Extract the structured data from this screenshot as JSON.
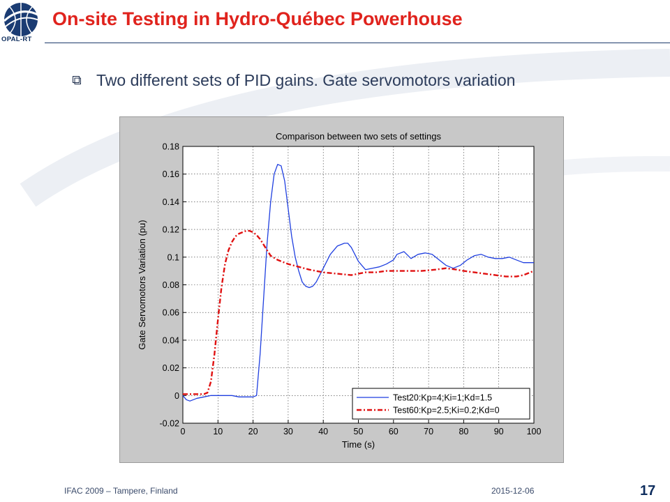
{
  "slide": {
    "logo_text": "OPAL-RT",
    "title": "On-site Testing in Hydro-Québec Powerhouse",
    "bullet": "Two  different sets of PID gains. Gate servomotors variation",
    "footer_left": "IFAC 2009 – Tampere, Finland",
    "footer_date": "2015-12-06",
    "page_number": "17"
  },
  "colors": {
    "title": "#e0231d",
    "navy": "#0f2e5e",
    "series_blue": "#1f3fe0",
    "series_red": "#e01010",
    "figure_bg": "#c8c8c8"
  },
  "chart_data": {
    "type": "line",
    "title": "Comparison between two sets of settings",
    "xlabel": "Time (s)",
    "ylabel": "Gate Servomotors Variation (pu)",
    "xlim": [
      0,
      100
    ],
    "ylim": [
      -0.02,
      0.18
    ],
    "xticks": [
      0,
      10,
      20,
      30,
      40,
      50,
      60,
      70,
      80,
      90,
      100
    ],
    "yticks": [
      -0.02,
      0,
      0.02,
      0.04,
      0.06,
      0.08,
      0.1,
      0.12,
      0.14,
      0.16,
      0.18
    ],
    "grid": true,
    "legend_position": "bottom-right",
    "series": [
      {
        "name": "Test20:Kp=4;Ki=1;Kd=1.5",
        "color": "#1f3fe0",
        "style": "solid",
        "points": [
          [
            0,
            0
          ],
          [
            1,
            -0.003
          ],
          [
            2,
            -0.004
          ],
          [
            4,
            -0.002
          ],
          [
            6,
            -0.001
          ],
          [
            8,
            0
          ],
          [
            10,
            0
          ],
          [
            12,
            0
          ],
          [
            14,
            0
          ],
          [
            16,
            -0.001
          ],
          [
            18,
            -0.001
          ],
          [
            20,
            -0.001
          ],
          [
            21,
            0
          ],
          [
            22,
            0.03
          ],
          [
            23,
            0.07
          ],
          [
            24,
            0.11
          ],
          [
            25,
            0.14
          ],
          [
            26,
            0.16
          ],
          [
            27,
            0.167
          ],
          [
            28,
            0.166
          ],
          [
            29,
            0.155
          ],
          [
            30,
            0.135
          ],
          [
            31,
            0.115
          ],
          [
            32,
            0.1
          ],
          [
            33,
            0.09
          ],
          [
            34,
            0.082
          ],
          [
            35,
            0.079
          ],
          [
            36,
            0.078
          ],
          [
            37,
            0.079
          ],
          [
            38,
            0.082
          ],
          [
            40,
            0.092
          ],
          [
            42,
            0.102
          ],
          [
            44,
            0.108
          ],
          [
            46,
            0.11
          ],
          [
            47,
            0.11
          ],
          [
            48,
            0.107
          ],
          [
            50,
            0.097
          ],
          [
            52,
            0.091
          ],
          [
            54,
            0.092
          ],
          [
            56,
            0.093
          ],
          [
            58,
            0.095
          ],
          [
            60,
            0.098
          ],
          [
            61,
            0.102
          ],
          [
            63,
            0.104
          ],
          [
            65,
            0.099
          ],
          [
            67,
            0.102
          ],
          [
            69,
            0.103
          ],
          [
            71,
            0.102
          ],
          [
            73,
            0.098
          ],
          [
            75,
            0.094
          ],
          [
            77,
            0.092
          ],
          [
            79,
            0.094
          ],
          [
            81,
            0.098
          ],
          [
            83,
            0.101
          ],
          [
            85,
            0.102
          ],
          [
            87,
            0.1
          ],
          [
            89,
            0.099
          ],
          [
            91,
            0.099
          ],
          [
            93,
            0.1
          ],
          [
            95,
            0.098
          ],
          [
            97,
            0.096
          ],
          [
            100,
            0.096
          ]
        ]
      },
      {
        "name": "Test60:Kp=2.5;Ki=0.2;Kd=0",
        "color": "#e01010",
        "style": "dashdot",
        "points": [
          [
            0,
            0.001
          ],
          [
            2,
            0.001
          ],
          [
            4,
            0.001
          ],
          [
            6,
            0.001
          ],
          [
            7,
            0.002
          ],
          [
            8,
            0.01
          ],
          [
            9,
            0.03
          ],
          [
            10,
            0.055
          ],
          [
            11,
            0.078
          ],
          [
            12,
            0.095
          ],
          [
            13,
            0.105
          ],
          [
            14,
            0.111
          ],
          [
            15,
            0.115
          ],
          [
            16,
            0.117
          ],
          [
            17,
            0.118
          ],
          [
            18,
            0.119
          ],
          [
            19,
            0.119
          ],
          [
            20,
            0.118
          ],
          [
            21,
            0.116
          ],
          [
            22,
            0.113
          ],
          [
            23,
            0.109
          ],
          [
            24,
            0.105
          ],
          [
            25,
            0.101
          ],
          [
            27,
            0.098
          ],
          [
            30,
            0.095
          ],
          [
            33,
            0.093
          ],
          [
            36,
            0.091
          ],
          [
            40,
            0.089
          ],
          [
            44,
            0.088
          ],
          [
            48,
            0.087
          ],
          [
            50,
            0.088
          ],
          [
            52,
            0.089
          ],
          [
            55,
            0.089
          ],
          [
            58,
            0.09
          ],
          [
            60,
            0.09
          ],
          [
            64,
            0.09
          ],
          [
            68,
            0.09
          ],
          [
            72,
            0.091
          ],
          [
            75,
            0.092
          ],
          [
            78,
            0.091
          ],
          [
            80,
            0.09
          ],
          [
            83,
            0.089
          ],
          [
            86,
            0.088
          ],
          [
            89,
            0.087
          ],
          [
            92,
            0.086
          ],
          [
            95,
            0.086
          ],
          [
            97,
            0.087
          ],
          [
            100,
            0.09
          ]
        ]
      }
    ]
  }
}
